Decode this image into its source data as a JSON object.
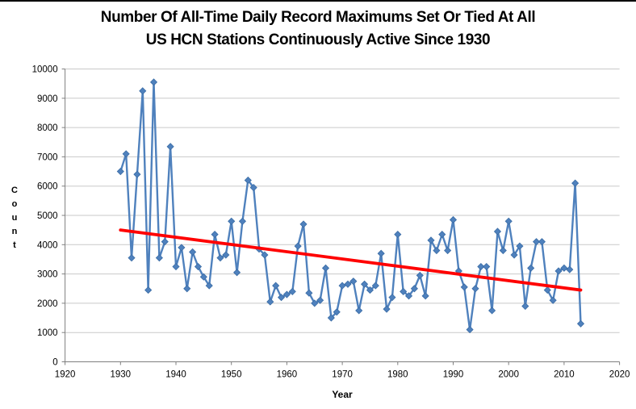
{
  "chart_data": {
    "type": "line",
    "title_lines": [
      "Number Of All-Time Daily Record Maximums Set Or Tied At All",
      "US HCN Stations Continuously Active Since 1930"
    ],
    "xlabel": "Year",
    "ylabel": "Count",
    "xlim": [
      1920,
      2020
    ],
    "ylim": [
      0,
      10000
    ],
    "x_ticks": [
      1920,
      1930,
      1940,
      1950,
      1960,
      1970,
      1980,
      1990,
      2000,
      2010,
      2020
    ],
    "y_ticks": [
      0,
      1000,
      2000,
      3000,
      4000,
      5000,
      6000,
      7000,
      8000,
      9000,
      10000
    ],
    "grid": "horizontal",
    "legend": "none",
    "marker": "diamond",
    "line_color": "#4F81BD",
    "marker_edge_color": "#3A6CA5",
    "trend_color": "#FF0000",
    "grid_color": "#C9C9C9",
    "axis_color": "#7F7F7F",
    "years": [
      1930,
      1931,
      1932,
      1933,
      1934,
      1935,
      1936,
      1937,
      1938,
      1939,
      1940,
      1941,
      1942,
      1943,
      1944,
      1945,
      1946,
      1947,
      1948,
      1949,
      1950,
      1951,
      1952,
      1953,
      1954,
      1955,
      1956,
      1957,
      1958,
      1959,
      1960,
      1961,
      1962,
      1963,
      1964,
      1965,
      1966,
      1967,
      1968,
      1969,
      1970,
      1971,
      1972,
      1973,
      1974,
      1975,
      1976,
      1977,
      1978,
      1979,
      1980,
      1981,
      1982,
      1983,
      1984,
      1985,
      1986,
      1987,
      1988,
      1989,
      1990,
      1991,
      1992,
      1993,
      1994,
      1995,
      1996,
      1997,
      1998,
      1999,
      2000,
      2001,
      2002,
      2003,
      2004,
      2005,
      2006,
      2007,
      2008,
      2009,
      2010,
      2011,
      2012,
      2013
    ],
    "values": [
      6500,
      7100,
      3550,
      6400,
      9250,
      2450,
      9550,
      3550,
      4100,
      7350,
      3250,
      3900,
      2500,
      3750,
      3250,
      2900,
      2600,
      4350,
      3550,
      3650,
      4800,
      3050,
      4800,
      6200,
      5950,
      3850,
      3650,
      2050,
      2600,
      2200,
      2300,
      2400,
      3950,
      4700,
      2350,
      2000,
      2100,
      3200,
      1500,
      1700,
      2600,
      2650,
      2750,
      1750,
      2650,
      2450,
      2600,
      3700,
      1800,
      2200,
      4350,
      2400,
      2250,
      2500,
      2950,
      2250,
      4150,
      3800,
      4350,
      3800,
      4850,
      3100,
      2550,
      1100,
      2500,
      3250,
      3250,
      1750,
      4450,
      3800,
      4800,
      3650,
      3950,
      1900,
      3200,
      4100,
      4100,
      2450,
      2100,
      3100,
      3200,
      3150,
      6100,
      1300
    ],
    "trend": {
      "x0": 1930,
      "y0": 4500,
      "x1": 2013,
      "y1": 2450
    }
  }
}
